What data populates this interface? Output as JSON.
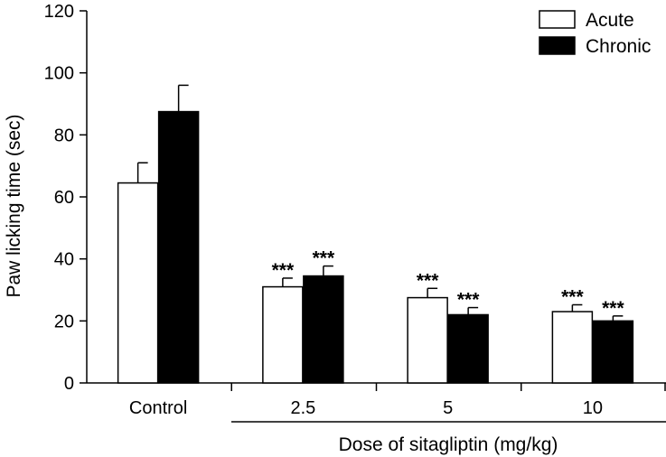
{
  "chart_data": {
    "type": "bar",
    "title": "",
    "ylabel": "Paw licking time (sec)",
    "xlabel": "Dose of sitagliptin (mg/kg)",
    "ylim": [
      0,
      120
    ],
    "yticks": [
      0,
      20,
      40,
      60,
      80,
      100,
      120
    ],
    "categories": [
      "Control",
      "2.5",
      "5",
      "10"
    ],
    "grid": false,
    "legend_position": "top-right",
    "series": [
      {
        "name": "Acute",
        "fill": "#ffffff",
        "values": [
          64.5,
          31,
          27.5,
          23
        ],
        "errors": [
          6.5,
          2.8,
          3,
          2.2
        ],
        "significance": [
          "",
          "***",
          "***",
          "***"
        ]
      },
      {
        "name": "Chronic",
        "fill": "#000000",
        "values": [
          87.5,
          34.5,
          22,
          20
        ],
        "errors": [
          8.5,
          3.2,
          2.3,
          1.6
        ],
        "significance": [
          "",
          "***",
          "***",
          "***"
        ]
      }
    ]
  }
}
